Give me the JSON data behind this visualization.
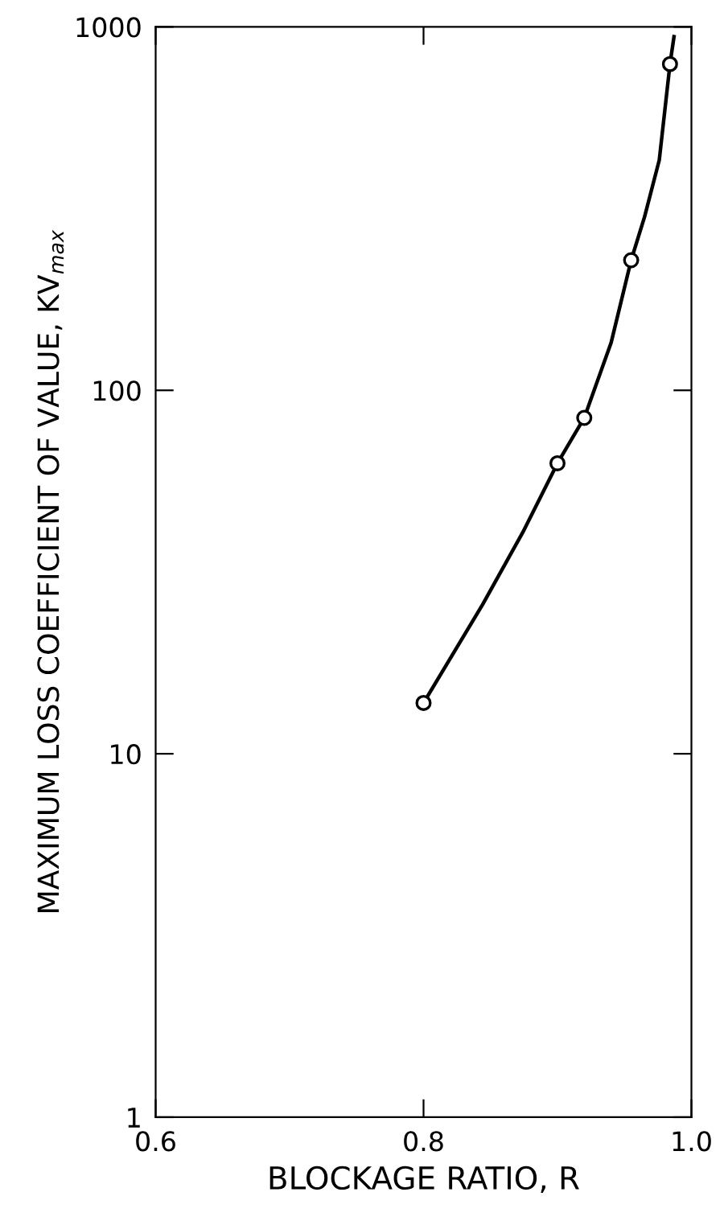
{
  "chart_data": {
    "type": "line",
    "xlabel": "BLOCKAGE RATIO, R",
    "ylabel": "MAXIMUM LOSS COEFFICIENT OF VALUE, KV$_{max}$",
    "log": "y",
    "xlim": [
      0.6,
      1.0
    ],
    "ylim": [
      1,
      1000
    ],
    "xticks": [
      0.6,
      0.8,
      {
        "value": 1,
        "label": "1.0"
      }
    ],
    "yticks": [
      1,
      10,
      100,
      1000
    ],
    "grid": false,
    "legend": false,
    "series": [
      {
        "color": "#000000",
        "marker": "none",
        "line_style": "solid",
        "x": [
          0.8,
          0.844,
          0.874,
          0.9,
          0.92,
          0.94,
          0.955,
          0.965,
          0.976,
          0.984,
          0.987
        ],
        "values": [
          13.8,
          25.7,
          40.6,
          63,
          84,
          135,
          228,
          300,
          430,
          790,
          940
        ]
      },
      {
        "type": "scatter",
        "color": "#000000",
        "marker": "circle",
        "x": [
          0.8,
          0.9,
          0.92,
          0.955,
          0.984
        ],
        "values": [
          13.8,
          63,
          84,
          228,
          790
        ]
      }
    ]
  }
}
